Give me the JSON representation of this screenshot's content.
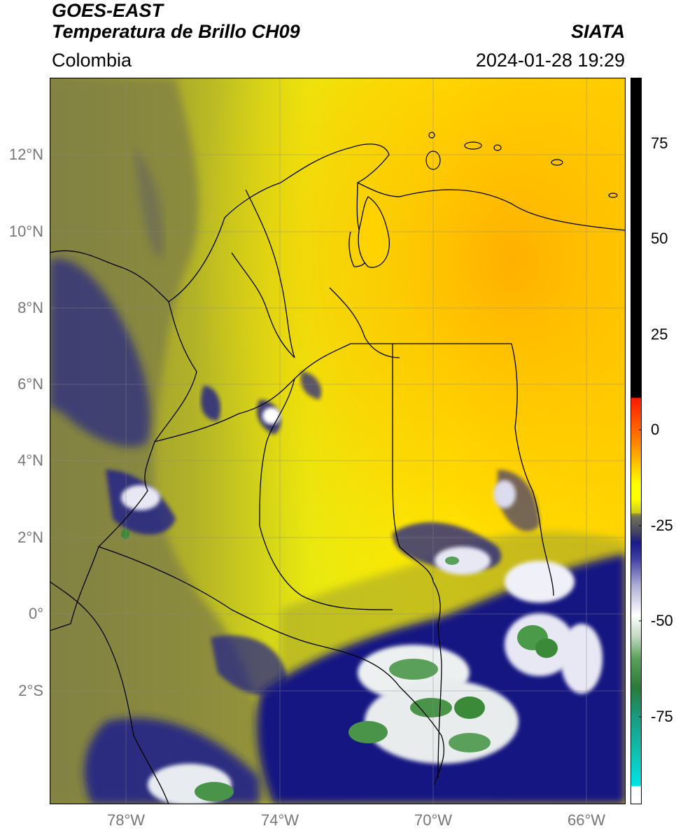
{
  "header": {
    "title_line1": "GOES-EAST",
    "title_line2": "Temperatura de Brillo CH09",
    "org": "SIATA",
    "region": "Colombia",
    "datetime": "2024-01-28 19:29"
  },
  "map": {
    "lat_labels": [
      "12°N",
      "10°N",
      "8°N",
      "6°N",
      "4°N",
      "2°N",
      "0°",
      "2°S"
    ],
    "lon_labels": [
      "78°W",
      "74°W",
      "70°W",
      "66°W"
    ],
    "extent": {
      "lon_min": -80,
      "lon_max": -65,
      "lat_min": -5,
      "lat_max": 14
    },
    "gridlines": true
  },
  "colorbar": {
    "tick_labels": [
      "75",
      "50",
      "25",
      "0",
      "-25",
      "-50",
      "-75"
    ],
    "range": [
      -100,
      90
    ],
    "colors": {
      "black": "#000000",
      "red": "#ff1a00",
      "orange": "#ff9900",
      "yellow": "#ffff00",
      "olive": "#9a9a2a",
      "grey": "#6f6f5a",
      "navy": "#1a1a8a",
      "white": "#ffffff",
      "green": "#3a8a3a",
      "teal": "#1ab0a0",
      "cyan": "#00e5e5"
    }
  }
}
